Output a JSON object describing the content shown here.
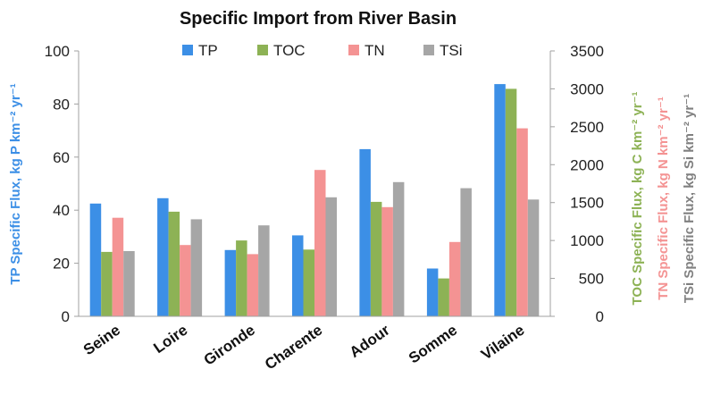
{
  "chart_data": {
    "type": "bar",
    "title": "Specific Import from River Basin",
    "categories": [
      "Seine",
      "Loire",
      "Gironde",
      "Charente",
      "Adour",
      "Somme",
      "Vilaine"
    ],
    "series": [
      {
        "name": "TP",
        "axis": "left",
        "color": "#3c8fe6",
        "values": [
          42.5,
          44.5,
          25,
          30.5,
          63,
          18,
          87.5
        ]
      },
      {
        "name": "TOC",
        "axis": "right",
        "color": "#8db255",
        "values": [
          850,
          1380,
          1000,
          880,
          1510,
          500,
          3000
        ]
      },
      {
        "name": "TN",
        "axis": "right",
        "color": "#f49393",
        "values": [
          1300,
          940,
          820,
          1930,
          1440,
          980,
          2480
        ]
      },
      {
        "name": "TSi",
        "axis": "right",
        "color": "#a6a6a6",
        "values": [
          860,
          1280,
          1200,
          1570,
          1770,
          1690,
          1540
        ]
      }
    ],
    "y_left": {
      "label": "TP Specific Flux, kg P km⁻² yr⁻¹",
      "color": "#3c8fe6",
      "ylim": [
        0,
        100
      ],
      "ticks": [
        0,
        20,
        40,
        60,
        80,
        100
      ]
    },
    "y_right": {
      "ylim": [
        0,
        3500
      ],
      "ticks": [
        0,
        500,
        1000,
        1500,
        2000,
        2500,
        3000,
        3500
      ]
    },
    "right_labels": [
      {
        "text": "TOC Specific Flux, kg C km⁻² yr⁻¹",
        "color": "#8db255"
      },
      {
        "text": "TN Specific Flux, kg N km⁻² yr⁻¹",
        "color": "#f49393"
      },
      {
        "text": "TSi Specific Flux, kg Si km⁻² yr⁻¹",
        "color": "#808080"
      }
    ],
    "legend_position": "top",
    "grid": false
  }
}
